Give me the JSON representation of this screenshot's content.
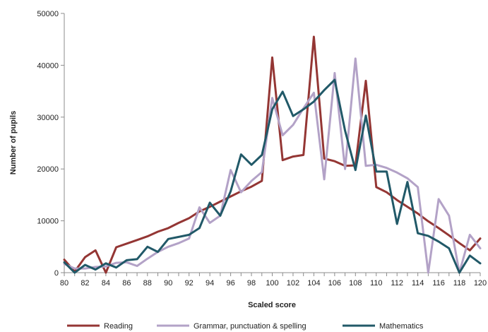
{
  "chart_data": {
    "type": "line",
    "xlabel": "Scaled score",
    "ylabel": "Number of pupils",
    "xlim": [
      80,
      120
    ],
    "ylim": [
      0,
      50000
    ],
    "y_ticks": [
      0,
      10000,
      20000,
      30000,
      40000,
      50000
    ],
    "x_ticks": [
      80,
      82,
      84,
      86,
      88,
      90,
      92,
      94,
      96,
      98,
      100,
      102,
      104,
      106,
      108,
      110,
      112,
      114,
      116,
      118,
      120
    ],
    "grid": false,
    "legend_position": "bottom",
    "x": [
      80,
      81,
      82,
      83,
      84,
      85,
      86,
      87,
      88,
      89,
      90,
      91,
      92,
      93,
      94,
      95,
      96,
      97,
      98,
      99,
      100,
      101,
      102,
      103,
      104,
      105,
      106,
      107,
      108,
      109,
      110,
      111,
      112,
      113,
      114,
      115,
      116,
      117,
      118,
      119,
      120
    ],
    "series": [
      {
        "name": "Reading",
        "color": "#943634",
        "values": [
          2500,
          200,
          3000,
          4300,
          0,
          4900,
          5600,
          6300,
          7000,
          7900,
          8600,
          9600,
          10500,
          11800,
          12700,
          13700,
          14700,
          15700,
          16600,
          17700,
          41500,
          21700,
          22400,
          22700,
          45500,
          22000,
          21500,
          20600,
          20700,
          37000,
          16500,
          15500,
          14000,
          12700,
          11400,
          9900,
          8600,
          7200,
          5700,
          4300,
          6600
        ]
      },
      {
        "name": "Grammar, punctuation & spelling",
        "color": "#b3a2c7",
        "values": [
          1700,
          800,
          800,
          1100,
          1200,
          1900,
          2000,
          1300,
          2700,
          4000,
          5000,
          5700,
          6600,
          12600,
          9600,
          11000,
          19800,
          15500,
          17700,
          19400,
          33700,
          26500,
          28500,
          31700,
          34700,
          18000,
          38500,
          20000,
          41300,
          20600,
          20800,
          20200,
          19300,
          18200,
          16500,
          0,
          14200,
          11000,
          0,
          7300,
          4700
        ]
      },
      {
        "name": "Mathematics",
        "color": "#215968",
        "values": [
          2000,
          0,
          1500,
          600,
          1800,
          1000,
          2400,
          2600,
          5000,
          4000,
          6500,
          6900,
          7300,
          8600,
          13500,
          11000,
          15700,
          22800,
          20800,
          22700,
          31500,
          34900,
          30200,
          31500,
          33000,
          35200,
          37200,
          27400,
          19800,
          30300,
          19500,
          19500,
          9400,
          17500,
          7600,
          7100,
          6000,
          4700,
          0,
          3300,
          1800
        ]
      }
    ]
  }
}
